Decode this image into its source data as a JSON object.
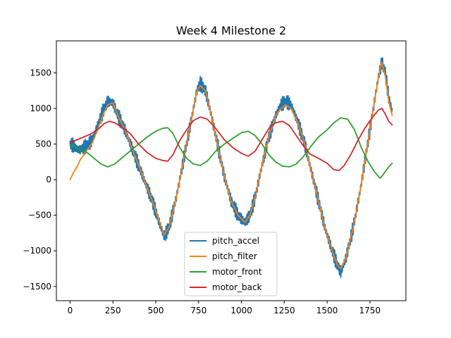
{
  "chart_data": {
    "type": "line",
    "title": "Week 4 Milestone 2",
    "xlabel": "",
    "ylabel": "",
    "xlim": [
      -80,
      1960
    ],
    "ylim": [
      -1700,
      1950
    ],
    "xticks": [
      0,
      250,
      500,
      750,
      1000,
      1250,
      1500,
      1750
    ],
    "yticks": [
      -1500,
      -1000,
      -500,
      0,
      500,
      1000,
      1500
    ],
    "xtick_labels": [
      "0",
      "250",
      "500",
      "750",
      "1000",
      "1250",
      "1500",
      "1750"
    ],
    "ytick_labels": [
      "−1500",
      "−1000",
      "−500",
      "0",
      "500",
      "1000",
      "1500"
    ],
    "grid": false,
    "legend_position": "lower-center",
    "series": [
      {
        "name": "pitch_accel",
        "color": "#1f77b4",
        "noisy": true,
        "x": [
          0,
          20,
          40,
          60,
          80,
          100,
          130,
          160,
          190,
          220,
          250,
          280,
          320,
          360,
          400,
          440,
          480,
          520,
          550,
          580,
          620,
          660,
          700,
          740,
          760,
          790,
          820,
          860,
          900,
          940,
          980,
          1020,
          1050,
          1080,
          1120,
          1160,
          1200,
          1230,
          1260,
          1290,
          1330,
          1370,
          1410,
          1450,
          1490,
          1530,
          1560,
          1580,
          1610,
          1650,
          1690,
          1730,
          1770,
          1800,
          1820,
          1840,
          1860,
          1880
        ],
        "y": [
          500,
          480,
          430,
          420,
          450,
          480,
          560,
          750,
          950,
          1100,
          1080,
          900,
          700,
          450,
          200,
          -50,
          -300,
          -600,
          -800,
          -650,
          -250,
          250,
          750,
          1250,
          1350,
          1250,
          950,
          500,
          50,
          -300,
          -500,
          -600,
          -500,
          -250,
          200,
          600,
          900,
          1050,
          1100,
          1050,
          800,
          500,
          100,
          -300,
          -700,
          -1000,
          -1200,
          -1300,
          -1100,
          -700,
          -200,
          400,
          1000,
          1450,
          1650,
          1500,
          1150,
          950
        ]
      },
      {
        "name": "pitch_filter",
        "color": "#ff7f0e",
        "noisy": false,
        "x": [
          0,
          20,
          40,
          60,
          80,
          100,
          130,
          160,
          190,
          220,
          250,
          280,
          320,
          360,
          400,
          440,
          480,
          520,
          550,
          580,
          620,
          660,
          700,
          740,
          760,
          790,
          820,
          860,
          900,
          940,
          980,
          1020,
          1050,
          1080,
          1120,
          1160,
          1200,
          1230,
          1260,
          1290,
          1330,
          1370,
          1410,
          1450,
          1490,
          1530,
          1560,
          1580,
          1610,
          1650,
          1690,
          1730,
          1770,
          1800,
          1820,
          1840,
          1860,
          1880
        ],
        "y": [
          0,
          100,
          180,
          280,
          350,
          420,
          520,
          700,
          900,
          1050,
          1080,
          900,
          700,
          450,
          200,
          -50,
          -300,
          -580,
          -780,
          -650,
          -250,
          250,
          750,
          1250,
          1320,
          1250,
          950,
          500,
          50,
          -300,
          -500,
          -600,
          -500,
          -250,
          200,
          600,
          900,
          1000,
          1050,
          1000,
          800,
          500,
          100,
          -300,
          -700,
          -1000,
          -1200,
          -1250,
          -1100,
          -700,
          -200,
          400,
          1000,
          1450,
          1650,
          1450,
          1100,
          900
        ]
      },
      {
        "name": "motor_front",
        "color": "#2ca02c",
        "noisy": false,
        "x": [
          0,
          30,
          60,
          100,
          140,
          180,
          220,
          260,
          300,
          350,
          400,
          450,
          500,
          540,
          570,
          600,
          640,
          680,
          720,
          760,
          800,
          850,
          900,
          950,
          1000,
          1040,
          1080,
          1120,
          1160,
          1200,
          1240,
          1280,
          1320,
          1360,
          1400,
          1450,
          1500,
          1540,
          1580,
          1620,
          1660,
          1700,
          1740,
          1780,
          1810,
          1830,
          1860,
          1880
        ],
        "y": [
          480,
          460,
          420,
          380,
          300,
          220,
          180,
          220,
          300,
          400,
          500,
          600,
          680,
          720,
          730,
          650,
          450,
          300,
          220,
          200,
          260,
          400,
          500,
          580,
          660,
          680,
          620,
          500,
          350,
          250,
          190,
          180,
          220,
          320,
          450,
          600,
          700,
          800,
          870,
          850,
          700,
          450,
          250,
          100,
          20,
          80,
          180,
          230
        ]
      },
      {
        "name": "motor_back",
        "color": "#d62728",
        "noisy": false,
        "x": [
          0,
          40,
          80,
          120,
          160,
          200,
          230,
          260,
          300,
          350,
          400,
          450,
          500,
          540,
          570,
          600,
          640,
          680,
          720,
          760,
          800,
          850,
          900,
          950,
          1000,
          1040,
          1080,
          1120,
          1160,
          1200,
          1240,
          1280,
          1320,
          1360,
          1400,
          1450,
          1500,
          1540,
          1570,
          1600,
          1640,
          1680,
          1720,
          1760,
          1800,
          1820,
          1840,
          1860,
          1880
        ],
        "y": [
          520,
          560,
          600,
          640,
          700,
          790,
          820,
          800,
          740,
          650,
          500,
          380,
          300,
          270,
          260,
          350,
          550,
          700,
          830,
          880,
          850,
          720,
          560,
          450,
          370,
          330,
          400,
          560,
          720,
          800,
          820,
          760,
          620,
          480,
          360,
          300,
          230,
          140,
          130,
          200,
          360,
          550,
          720,
          860,
          980,
          1000,
          920,
          820,
          770
        ]
      }
    ]
  }
}
